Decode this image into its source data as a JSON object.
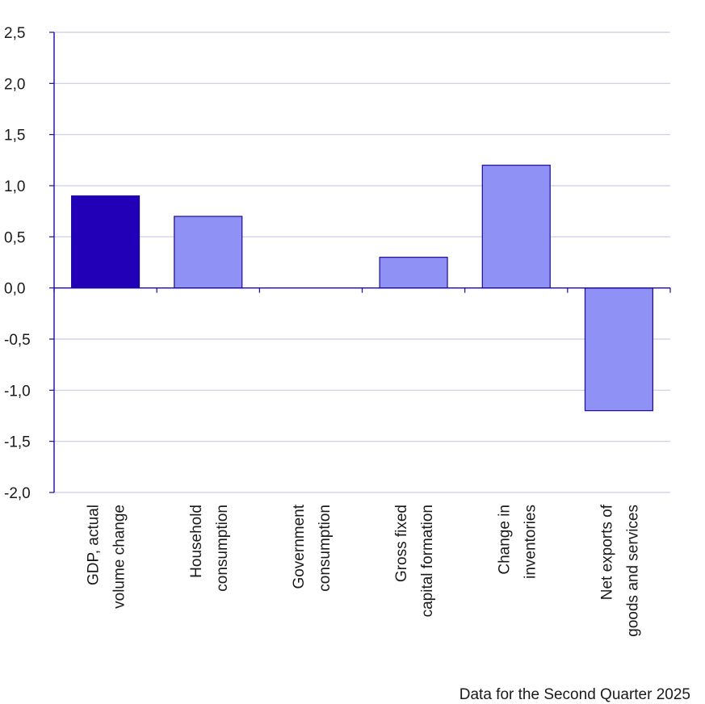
{
  "chart_data": {
    "type": "bar",
    "categories": [
      [
        "GDP, actual",
        "volume change"
      ],
      [
        "Household",
        "consumption"
      ],
      [
        "Government",
        "consumption"
      ],
      [
        "Gross fixed",
        "capital formation"
      ],
      [
        "Change in",
        "inventories"
      ],
      [
        "Net exports of",
        "goods and services"
      ]
    ],
    "values": [
      0.9,
      0.7,
      0.0,
      0.3,
      1.2,
      -1.2
    ],
    "bar_colors": [
      "#2200b8",
      "#8f91f5",
      "#8f91f5",
      "#8f91f5",
      "#8f91f5",
      "#8f91f5"
    ],
    "bar_border_color": "#1a0a9a",
    "ylim": [
      -2.0,
      2.5
    ],
    "yticks": [
      2.5,
      2.0,
      1.5,
      1.0,
      0.5,
      0.0,
      -0.5,
      -1.0,
      -1.5,
      -2.0
    ],
    "ytick_labels": [
      "2,5",
      "2,0",
      "1,5",
      "1,0",
      "0,5",
      "0,0",
      "-0,5",
      "-1,0",
      "-1,5",
      "-2,0"
    ],
    "grid": true,
    "grid_color": "#c9c9ee",
    "axis_color": "#1a0a9a",
    "title": "",
    "xlabel": "",
    "ylabel": "",
    "note": "Data for the Second Quarter 2025"
  }
}
